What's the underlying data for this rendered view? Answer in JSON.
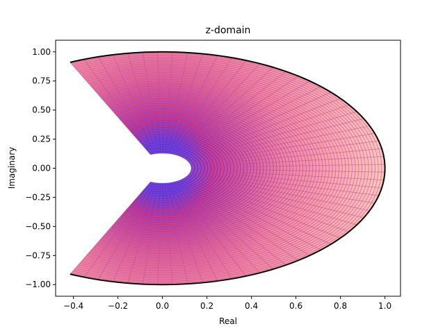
{
  "chart_data": {
    "type": "line",
    "title": "z-domain",
    "xlabel": "Real",
    "ylabel": "Imaginary",
    "xlim": [
      -0.48,
      1.07
    ],
    "ylim": [
      -1.1,
      1.1
    ],
    "xticks": [
      -0.4,
      -0.2,
      0.0,
      0.2,
      0.4,
      0.6,
      0.8,
      1.0
    ],
    "xtick_labels": [
      "−0.4",
      "−0.2",
      "0.0",
      "0.2",
      "0.4",
      "0.6",
      "0.8",
      "1.0"
    ],
    "yticks": [
      -1.0,
      -0.75,
      -0.5,
      -0.25,
      0.0,
      0.25,
      0.5,
      0.75,
      1.0
    ],
    "ytick_labels": [
      "−1.00",
      "−0.75",
      "−0.50",
      "−0.25",
      "0.00",
      "0.25",
      "0.50",
      "0.75",
      "1.00"
    ],
    "grid": false,
    "mesh": {
      "description": "polar grid mapping: z = r * exp(i*theta)",
      "r_range": [
        0.13,
        1.0
      ],
      "theta_range_deg": [
        -114.5,
        114.5
      ],
      "radial_line_count": 60,
      "arc_count": 60,
      "fill_inner_color": "#d4106c",
      "fill_outer_color": "#ffb3a8",
      "line_inner_color": "#3322dd",
      "line_outer_color": "#c44c9a"
    },
    "boundary": {
      "r": 1.0,
      "theta_range_deg": [
        -114.5,
        114.5
      ],
      "color": "#000000"
    }
  }
}
